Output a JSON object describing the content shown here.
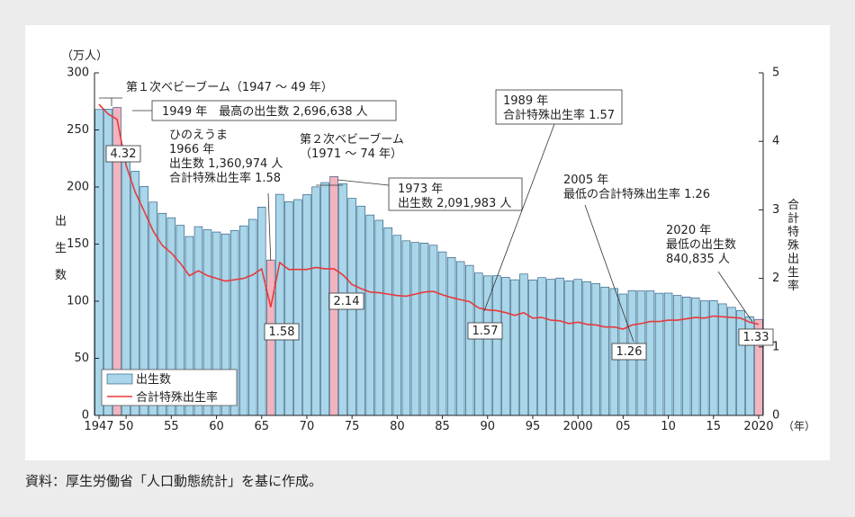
{
  "source_note": "資料：厚生労働省「人口動態統計」を基に作成。",
  "chart_data": {
    "type": "bar",
    "y_unit_label": "（万人）",
    "y_left_label": [
      "出",
      "生",
      "数"
    ],
    "y_right_label": [
      "合",
      "計",
      "特",
      "殊",
      "出",
      "生",
      "率"
    ],
    "x_unit_label": "（年）",
    "ylim_left": [
      0,
      300
    ],
    "ylim_right": [
      0,
      5
    ],
    "y_left_ticks": [
      "0",
      "50",
      "100",
      "150",
      "200",
      "250",
      "300"
    ],
    "y_right_ticks": [
      "0",
      "1",
      "2",
      "3",
      "4",
      "5"
    ],
    "x_tick_labels": [
      {
        "year": 1947,
        "label": "1947"
      },
      {
        "year": 1950,
        "label": "50"
      },
      {
        "year": 1955,
        "label": "55"
      },
      {
        "year": 1960,
        "label": "60"
      },
      {
        "year": 1965,
        "label": "65"
      },
      {
        "year": 1970,
        "label": "70"
      },
      {
        "year": 1975,
        "label": "75"
      },
      {
        "year": 1980,
        "label": "80"
      },
      {
        "year": 1985,
        "label": "85"
      },
      {
        "year": 1990,
        "label": "90"
      },
      {
        "year": 1995,
        "label": "95"
      },
      {
        "year": 2000,
        "label": "2000"
      },
      {
        "year": 2005,
        "label": "05"
      },
      {
        "year": 2010,
        "label": "10"
      },
      {
        "year": 2015,
        "label": "15"
      },
      {
        "year": 2020,
        "label": "2020"
      }
    ],
    "years": [
      1947,
      1948,
      1949,
      1950,
      1951,
      1952,
      1953,
      1954,
      1955,
      1956,
      1957,
      1958,
      1959,
      1960,
      1961,
      1962,
      1963,
      1964,
      1965,
      1966,
      1967,
      1968,
      1969,
      1970,
      1971,
      1972,
      1973,
      1974,
      1975,
      1976,
      1977,
      1978,
      1979,
      1980,
      1981,
      1982,
      1983,
      1984,
      1985,
      1986,
      1987,
      1988,
      1989,
      1990,
      1991,
      1992,
      1993,
      1994,
      1995,
      1996,
      1997,
      1998,
      1999,
      2000,
      2001,
      2002,
      2003,
      2004,
      2005,
      2006,
      2007,
      2008,
      2009,
      2010,
      2011,
      2012,
      2013,
      2014,
      2015,
      2016,
      2017,
      2018,
      2019,
      2020
    ],
    "series": [
      {
        "name": "出生数",
        "axis": "left",
        "values": [
          267.9,
          268.2,
          269.7,
          233.8,
          213.8,
          200.5,
          186.8,
          177.0,
          173.1,
          166.5,
          156.7,
          165.3,
          162.6,
          160.6,
          158.9,
          161.9,
          166.0,
          171.7,
          182.4,
          136.1,
          193.6,
          187.2,
          189.0,
          193.4,
          200.1,
          203.9,
          209.2,
          203.0,
          190.1,
          183.3,
          175.5,
          170.9,
          164.3,
          157.7,
          152.9,
          151.5,
          150.9,
          149.0,
          143.2,
          138.3,
          134.7,
          131.4,
          124.7,
          122.2,
          122.3,
          120.9,
          118.8,
          123.8,
          118.7,
          120.7,
          119.2,
          120.3,
          117.8,
          119.1,
          117.1,
          115.4,
          112.4,
          111.1,
          106.3,
          109.3,
          109.0,
          109.1,
          107.0,
          107.1,
          105.1,
          103.7,
          103.0,
          100.4,
          100.6,
          97.7,
          94.6,
          91.8,
          86.5,
          84.1
        ]
      },
      {
        "name": "合計特殊出生率",
        "axis": "right",
        "values": [
          4.54,
          4.4,
          4.32,
          3.65,
          3.26,
          2.98,
          2.69,
          2.48,
          2.37,
          2.22,
          2.04,
          2.11,
          2.04,
          2.0,
          1.96,
          1.98,
          2.0,
          2.05,
          2.14,
          1.58,
          2.23,
          2.13,
          2.13,
          2.13,
          2.16,
          2.14,
          2.14,
          2.05,
          1.91,
          1.85,
          1.8,
          1.79,
          1.77,
          1.75,
          1.74,
          1.77,
          1.8,
          1.81,
          1.76,
          1.72,
          1.69,
          1.66,
          1.57,
          1.54,
          1.53,
          1.5,
          1.46,
          1.5,
          1.42,
          1.43,
          1.39,
          1.38,
          1.34,
          1.36,
          1.33,
          1.32,
          1.29,
          1.29,
          1.26,
          1.32,
          1.34,
          1.37,
          1.37,
          1.39,
          1.39,
          1.41,
          1.43,
          1.42,
          1.45,
          1.44,
          1.43,
          1.42,
          1.36,
          1.33
        ]
      }
    ],
    "highlight_years": [
      1949,
      1966,
      1973,
      2020
    ],
    "legend": {
      "position": "bottom-left",
      "items": [
        "出生数",
        "合計特殊出生率"
      ]
    },
    "tfr_labels": [
      {
        "year": 1949,
        "text": "4.32"
      },
      {
        "year": 1966,
        "text": "1.58"
      },
      {
        "year": 1973,
        "text": "2.14"
      },
      {
        "year": 1989,
        "text": "1.57"
      },
      {
        "year": 2005,
        "text": "1.26"
      },
      {
        "year": 2020,
        "text": "1.33"
      }
    ],
    "annotations": {
      "boom1": "第１次ベビーブーム（1947 ～ 49 年）",
      "max_births": "1949 年　最高の出生数 2,696,638 人",
      "hinoeuma": [
        "ひのえうま",
        "1966 年",
        "出生数 1,360,974 人",
        "合計特殊出生率 1.58"
      ],
      "boom2": [
        "第２次ベビーブーム",
        "（1971 ～ 74 年）"
      ],
      "y1973": [
        "1973 年",
        "出生数 2,091,983 人"
      ],
      "y1989": [
        "1989 年",
        "合計特殊出生率 1.57"
      ],
      "y2005": [
        "2005 年",
        "最低の合計特殊出生率 1.26"
      ],
      "y2020": [
        "2020 年",
        "最低の出生数",
        "840,835 人"
      ]
    },
    "colors": {
      "bar": "#a9d6e8",
      "bar_stroke": "#1f4f78",
      "highlight_bar": "#f2b4be",
      "line": "#e8393c",
      "label_box_border": "#333333"
    }
  }
}
